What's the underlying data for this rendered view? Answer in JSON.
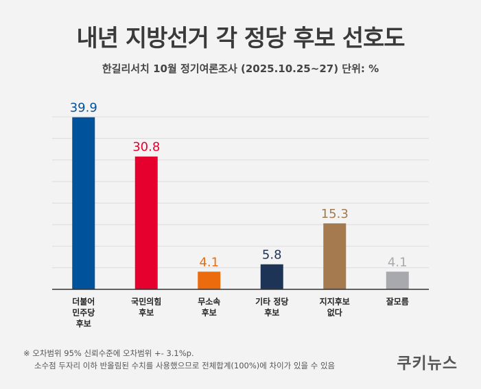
{
  "title": "내년 지방선거 각 정당 후보 선호도",
  "subtitle": "한길리서치 10월 정기여론조사 (2025.10.25~27) 단위: %",
  "footnote": {
    "line1": "※ 오차범위 95% 신뢰수준에 오차범위 +- 3.1%p.",
    "line2": "소수점 두자리 이하 반올림된 수치를 사용했으므로 전체합계(100%)에 차이가 있을 수 있음"
  },
  "logo": "쿠키뉴스",
  "chart_data": {
    "type": "bar",
    "title": "내년 지방선거 각 정당 후보 선호도",
    "categories": [
      "더불어 민주당 후보",
      "국민의힘 후보",
      "무소속 후보",
      "기타 정당 후보",
      "지지후보 없다",
      "잘모름"
    ],
    "category_lines": [
      [
        "더불어",
        "민주당",
        "후보"
      ],
      [
        "국민의힘",
        "후보"
      ],
      [
        "무소속",
        "후보"
      ],
      [
        "기타 정당",
        "후보"
      ],
      [
        "지지후보",
        "없다"
      ],
      [
        "잘모름"
      ]
    ],
    "value_labels": [
      "39.9",
      "30.8",
      "4.1",
      "5.8",
      "15.3",
      "4.1"
    ],
    "values": [
      39.9,
      30.8,
      4.1,
      5.8,
      15.3,
      4.1
    ],
    "colors": [
      "#00529b",
      "#e6002d",
      "#ec6b0c",
      "#1e3457",
      "#a57a4e",
      "#a8a9ad"
    ],
    "ylim": [
      0,
      40
    ],
    "grid": true,
    "xlabel": "",
    "ylabel": ""
  }
}
